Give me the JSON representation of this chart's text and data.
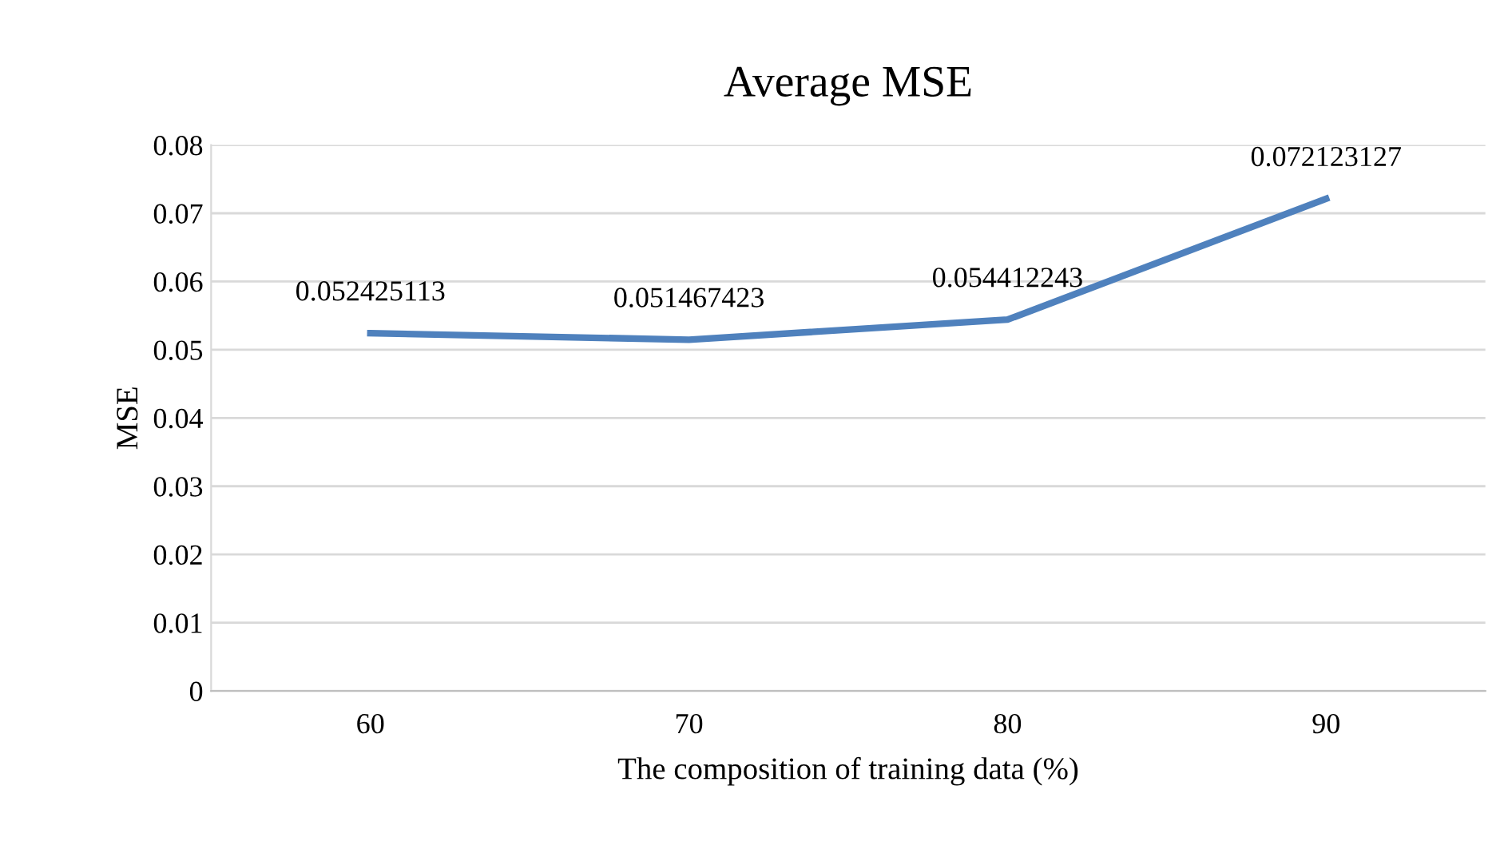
{
  "chart_data": {
    "type": "line",
    "title": "Average MSE",
    "xlabel": "The composition of training data (%)",
    "ylabel": "MSE",
    "categories": [
      "60",
      "70",
      "80",
      "90"
    ],
    "series": [
      {
        "color": "#4f81bd",
        "values": [
          0.052425113,
          0.051467423,
          0.054412243,
          0.072123127
        ]
      }
    ],
    "ylim": [
      0,
      0.08
    ],
    "yticks": [
      0,
      0.01,
      0.02,
      0.03,
      0.04,
      0.05,
      0.06,
      0.07,
      0.08
    ],
    "grid": "y",
    "legend": false,
    "marker": "none",
    "line_style": "solid",
    "data_labels": true
  }
}
